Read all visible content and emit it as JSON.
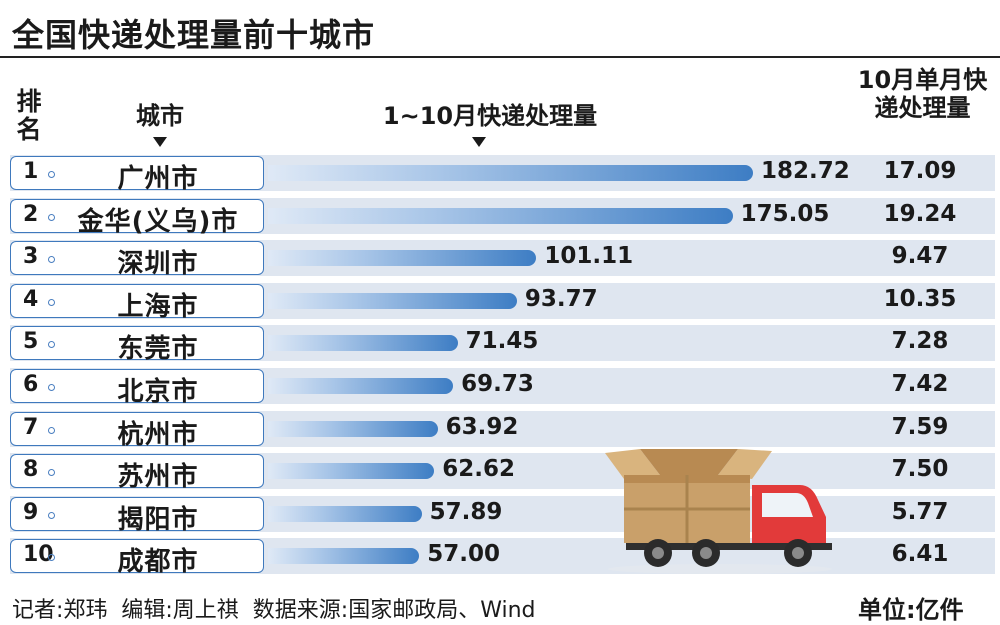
{
  "title": "全国快递处理量前十城市",
  "headers": {
    "rank": "排名",
    "city": "城市",
    "total": "1~10月快递处理量",
    "monthly": "10月单月快递处理量"
  },
  "footer": {
    "credit": "记者:郑玮  编辑:周上祺  数据来源:国家邮政局、Wind",
    "unit": "单位:亿件"
  },
  "chart_data": {
    "type": "bar",
    "orientation": "horizontal",
    "title": "全国快递处理量前十城市",
    "unit": "亿件",
    "ranks": [
      "1",
      "2",
      "3",
      "4",
      "5",
      "6",
      "7",
      "8",
      "9",
      "10"
    ],
    "categories": [
      "广州市",
      "金华(义乌)市",
      "深圳市",
      "上海市",
      "东莞市",
      "北京市",
      "杭州市",
      "苏州市",
      "揭阳市",
      "成都市"
    ],
    "series": [
      {
        "name": "1~10月快递处理量",
        "values": [
          182.72,
          175.05,
          101.11,
          93.77,
          71.45,
          69.73,
          63.92,
          62.62,
          57.89,
          57.0
        ]
      },
      {
        "name": "10月单月快递处理量",
        "values": [
          17.09,
          19.24,
          9.47,
          10.35,
          7.28,
          7.42,
          7.59,
          7.5,
          5.77,
          6.41
        ]
      }
    ],
    "value_labels": [
      "182.72",
      "175.05",
      "101.11",
      "93.77",
      "71.45",
      "69.73",
      "63.92",
      "62.62",
      "57.89",
      "57.00"
    ],
    "monthly_labels": [
      "17.09",
      "19.24",
      "9.47",
      "10.35",
      "7.28",
      "7.42",
      "7.59",
      "7.50",
      "5.77",
      "6.41"
    ],
    "xlim": [
      0,
      182.72
    ],
    "grid": false
  },
  "illustration": {
    "icon": "delivery-truck-icon",
    "cab_color": "#e23a3a",
    "box_color": "#c9a06a"
  }
}
